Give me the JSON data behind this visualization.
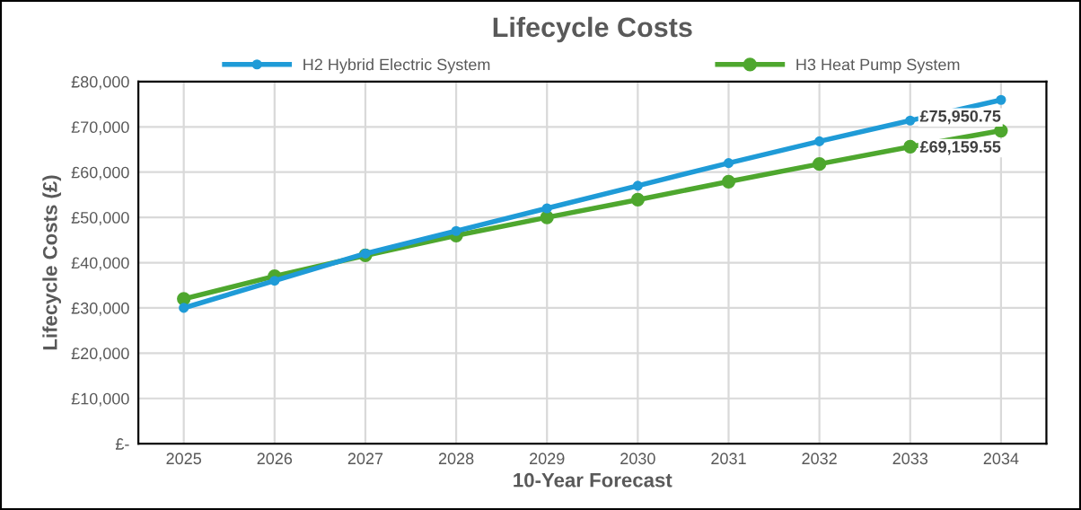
{
  "chart_data": {
    "type": "line",
    "title": "Lifecycle Costs",
    "xlabel": "10-Year Forecast",
    "ylabel": "Lifecycle Costs (£)",
    "categories": [
      "2025",
      "2026",
      "2027",
      "2028",
      "2029",
      "2030",
      "2031",
      "2032",
      "2033",
      "2034"
    ],
    "series": [
      {
        "name": "H2 Hybrid Electric System",
        "color": "#1f9bd7",
        "values": [
          30000,
          36000,
          42000,
          47000,
          52000,
          57000,
          62000,
          66800,
          71400,
          75950.75
        ],
        "value_labels": [
          null,
          null,
          null,
          null,
          null,
          null,
          null,
          null,
          null,
          "£75,950.75"
        ]
      },
      {
        "name": "H3 Heat Pump System",
        "color": "#4ea72e",
        "values": [
          32000,
          37000,
          41600,
          46000,
          50000,
          53900,
          57900,
          61800,
          65600,
          69159.55
        ],
        "value_labels": [
          null,
          null,
          null,
          null,
          null,
          null,
          null,
          null,
          null,
          "£69,159.55"
        ]
      }
    ],
    "ylim": [
      0,
      80000
    ],
    "yticks": [
      {
        "value": 0,
        "label": "£-"
      },
      {
        "value": 10000,
        "label": "£10,000"
      },
      {
        "value": 20000,
        "label": "£20,000"
      },
      {
        "value": 30000,
        "label": "£30,000"
      },
      {
        "value": 40000,
        "label": "£40,000"
      },
      {
        "value": 50000,
        "label": "£50,000"
      },
      {
        "value": 60000,
        "label": "£60,000"
      },
      {
        "value": 70000,
        "label": "£70,000"
      },
      {
        "value": 80000,
        "label": "£80,000"
      }
    ],
    "grid": true,
    "legend": "top",
    "marker": "circle",
    "line_style": "solid"
  }
}
